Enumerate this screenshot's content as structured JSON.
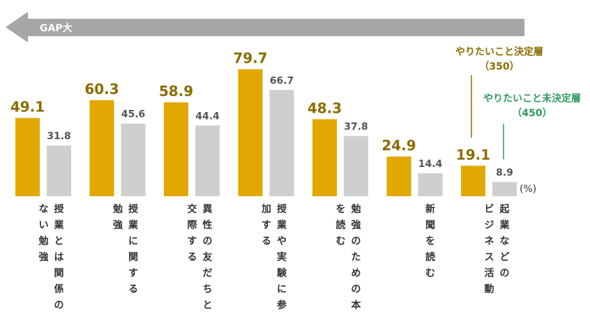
{
  "chart_data": {
    "type": "bar",
    "gap_label": "GAP大",
    "unit_label": "(%)",
    "series": [
      {
        "name": "やりたいこと決定層",
        "count": "（350）",
        "color": "#E0A800",
        "values": [
          49.1,
          60.3,
          58.9,
          79.7,
          48.3,
          24.9,
          19.1
        ]
      },
      {
        "name": "やりたいこと未決定層",
        "count": "（450）",
        "color": "#CFCFCF",
        "values": [
          31.8,
          45.6,
          44.4,
          66.7,
          37.8,
          14.4,
          8.9
        ]
      }
    ],
    "value_labels": [
      [
        "49.1",
        "60.3",
        "58.9",
        "79.7",
        "48.3",
        "24.9",
        "19.1"
      ],
      [
        "31.8",
        "45.6",
        "44.4",
        "66.7",
        "37.8",
        "14.4",
        "8.9"
      ]
    ],
    "categories": [
      [
        "授業とは関係の",
        "ない勉強"
      ],
      [
        "授業に関する",
        "勉強"
      ],
      [
        "異性の友だちと",
        "交際する"
      ],
      [
        "授業や実験に参",
        "加する"
      ],
      [
        "勉強のための本",
        "を読む"
      ],
      [
        "新聞を読む"
      ],
      [
        "起業などの",
        "ビジネス活動"
      ]
    ],
    "colors": {
      "legend_decided": "#8A6D00",
      "legend_undecided": "#2E9A5E",
      "value_decided": "#8A6D00",
      "value_undecided": "#555555",
      "arrow": "#A6A6A6"
    }
  }
}
